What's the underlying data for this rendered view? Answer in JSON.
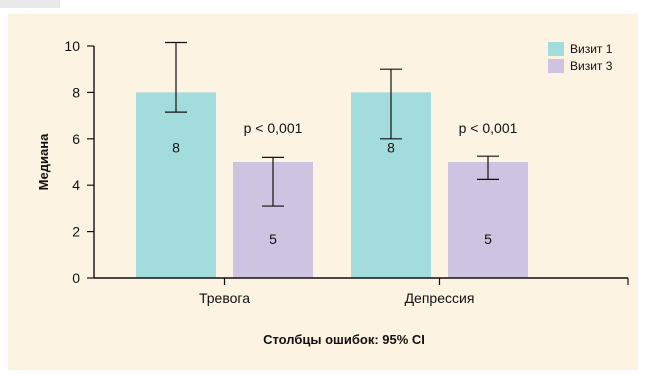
{
  "chart_data": {
    "type": "bar",
    "categories": [
      "Тревога",
      "Депрессия"
    ],
    "series": [
      {
        "name": "Визит 1",
        "color": "#a3dcdc",
        "values": [
          8,
          8
        ],
        "error_low": [
          7.15,
          6.0
        ],
        "error_high": [
          10.15,
          9.0
        ]
      },
      {
        "name": "Визит 3",
        "color": "#cec3e1",
        "values": [
          5,
          5
        ],
        "error_low": [
          3.1,
          4.25
        ],
        "error_high": [
          5.2,
          5.25
        ]
      }
    ],
    "bar_labels": [
      [
        "8",
        "8"
      ],
      [
        "5",
        "5"
      ]
    ],
    "annotations": [
      "p < 0,001",
      "p < 0,001"
    ],
    "ylabel": "Медиана",
    "xlabel": "",
    "ylim": [
      0,
      10
    ],
    "yticks": [
      0,
      2,
      4,
      6,
      8,
      10
    ],
    "footnote": "Столбцы ошибок: 95% CI",
    "legend_position": "top-right",
    "grid": false
  }
}
